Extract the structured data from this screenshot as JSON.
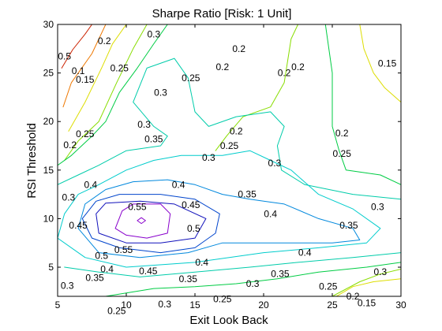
{
  "chart_data": {
    "type": "contour",
    "title": "Sharpe Ratio [Risk: 1 Unit]",
    "xlabel": "Exit Look Back",
    "ylabel": "RSI Threshold",
    "xlim": [
      5,
      30
    ],
    "ylim": [
      2,
      30
    ],
    "xticks": [
      5,
      10,
      15,
      20,
      25,
      30
    ],
    "yticks": [
      5,
      10,
      15,
      20,
      25,
      30
    ],
    "grid": false,
    "levels": [
      {
        "level": 0.05,
        "color": "#cc2200"
      },
      {
        "level": 0.1,
        "color": "#ee7700"
      },
      {
        "level": 0.15,
        "color": "#dddd00"
      },
      {
        "level": 0.2,
        "color": "#88dd00"
      },
      {
        "level": 0.25,
        "color": "#00cc44"
      },
      {
        "level": 0.3,
        "color": "#00ccaa"
      },
      {
        "level": 0.35,
        "color": "#00cccc"
      },
      {
        "level": 0.4,
        "color": "#0088dd"
      },
      {
        "level": 0.45,
        "color": "#0044cc"
      },
      {
        "level": 0.5,
        "color": "#1111bb"
      },
      {
        "level": 0.55,
        "color": "#8800cc"
      }
    ],
    "contours": [
      {
        "level": 0.05,
        "points": [
          [
            5.3,
            25.5
          ],
          [
            6.1,
            27.4
          ],
          [
            7.0,
            29.0
          ],
          [
            7.5,
            30.0
          ]
        ]
      },
      {
        "level": 0.1,
        "points": [
          [
            5.4,
            21.5
          ],
          [
            6.0,
            24.0
          ],
          [
            7.5,
            27.0
          ],
          [
            8.5,
            30.0
          ]
        ]
      },
      {
        "level": 0.15,
        "points": [
          [
            5.8,
            19.0
          ],
          [
            7.0,
            22.0
          ],
          [
            8.2,
            25.5
          ],
          [
            9.0,
            28.0
          ],
          [
            10.0,
            30.0
          ]
        ]
      },
      {
        "level": 0.15,
        "points": [
          [
            30.0,
            22.0
          ],
          [
            28.8,
            23.5
          ],
          [
            28.0,
            25.0
          ],
          [
            27.3,
            27.5
          ],
          [
            27.0,
            30.0
          ]
        ]
      },
      {
        "level": 0.15,
        "points": [
          [
            25.3,
            2.0
          ],
          [
            26.5,
            3.0
          ],
          [
            28.0,
            3.5
          ],
          [
            30.0,
            3.8
          ]
        ]
      },
      {
        "level": 0.2,
        "points": [
          [
            5.5,
            16.0
          ],
          [
            6.5,
            18.0
          ],
          [
            8.0,
            20.0
          ],
          [
            9.3,
            24.0
          ],
          [
            10.5,
            27.5
          ],
          [
            11.5,
            30.0
          ]
        ]
      },
      {
        "level": 0.2,
        "points": [
          [
            22.5,
            30.0
          ],
          [
            22.0,
            28.5
          ],
          [
            21.5,
            24.0
          ],
          [
            20.5,
            21.5
          ],
          [
            18.5,
            20.5
          ],
          [
            17.3,
            18.5
          ],
          [
            16.5,
            17.0
          ]
        ]
      },
      {
        "level": 0.2,
        "points": [
          [
            25.0,
            2.0
          ],
          [
            27.0,
            3.5
          ],
          [
            28.5,
            4.3
          ],
          [
            30.0,
            4.8
          ]
        ]
      },
      {
        "level": 0.25,
        "points": [
          [
            5.0,
            15.5
          ],
          [
            6.0,
            16.5
          ],
          [
            7.5,
            18.5
          ],
          [
            8.5,
            20.0
          ],
          [
            9.5,
            23.0
          ],
          [
            10.8,
            25.5
          ],
          [
            12.0,
            28.0
          ],
          [
            13.0,
            30.0
          ]
        ]
      },
      {
        "level": 0.25,
        "points": [
          [
            30.0,
            13.5
          ],
          [
            28.5,
            14.5
          ],
          [
            26.0,
            15.0
          ],
          [
            25.5,
            17.0
          ],
          [
            25.0,
            19.5
          ],
          [
            25.0,
            25.0
          ],
          [
            24.5,
            30.0
          ]
        ]
      },
      {
        "level": 0.25,
        "points": [
          [
            8.5,
            2.0
          ],
          [
            12.0,
            2.8
          ],
          [
            15.0,
            3.0
          ],
          [
            18.0,
            3.3
          ],
          [
            21.0,
            3.8
          ],
          [
            24.0,
            4.5
          ],
          [
            27.5,
            5.0
          ],
          [
            30.0,
            5.5
          ]
        ]
      },
      {
        "level": 0.3,
        "points": [
          [
            5.0,
            13.5
          ],
          [
            6.5,
            14.5
          ],
          [
            8.0,
            15.5
          ],
          [
            10.0,
            17.0
          ],
          [
            12.5,
            17.5
          ],
          [
            13.0,
            18.5
          ],
          [
            12.0,
            19.5
          ],
          [
            10.5,
            22.0
          ],
          [
            11.5,
            25.5
          ],
          [
            13.5,
            26.5
          ],
          [
            14.5,
            24.5
          ],
          [
            15.0,
            21.0
          ],
          [
            16.0,
            19.5
          ],
          [
            18.0,
            20.5
          ],
          [
            20.5,
            21.0
          ],
          [
            21.5,
            19.5
          ],
          [
            21.0,
            17.5
          ],
          [
            21.3,
            15.0
          ],
          [
            23.0,
            13.5
          ],
          [
            26.5,
            12.5
          ],
          [
            30.0,
            12.0
          ]
        ]
      },
      {
        "level": 0.3,
        "points": [
          [
            5.5,
            5.0
          ],
          [
            8.0,
            4.5
          ],
          [
            11.0,
            4.0
          ],
          [
            15.0,
            4.5
          ],
          [
            19.0,
            5.0
          ],
          [
            22.5,
            5.5
          ],
          [
            26.5,
            6.0
          ],
          [
            30.0,
            6.5
          ]
        ]
      },
      {
        "level": 0.35,
        "points": [
          [
            5.0,
            8.0
          ],
          [
            5.5,
            10.5
          ],
          [
            6.5,
            12.5
          ],
          [
            8.0,
            13.5
          ],
          [
            10.0,
            15.0
          ],
          [
            12.0,
            16.0
          ],
          [
            14.0,
            16.5
          ],
          [
            17.0,
            16.5
          ],
          [
            19.0,
            17.0
          ],
          [
            20.5,
            16.0
          ],
          [
            22.0,
            15.0
          ],
          [
            24.0,
            12.5
          ],
          [
            26.5,
            11.0
          ],
          [
            28.5,
            9.0
          ],
          [
            27.5,
            7.5
          ],
          [
            24.0,
            7.0
          ],
          [
            20.0,
            6.5
          ],
          [
            15.0,
            5.5
          ],
          [
            10.0,
            5.0
          ],
          [
            7.0,
            6.0
          ],
          [
            5.0,
            8.0
          ]
        ]
      },
      {
        "level": 0.4,
        "points": [
          [
            6.5,
            9.0
          ],
          [
            7.0,
            11.5
          ],
          [
            8.5,
            13.0
          ],
          [
            10.5,
            13.8
          ],
          [
            13.0,
            14.0
          ],
          [
            15.0,
            13.5
          ],
          [
            17.0,
            12.5
          ],
          [
            19.0,
            12.0
          ],
          [
            21.5,
            11.5
          ],
          [
            24.0,
            10.0
          ],
          [
            26.5,
            9.0
          ],
          [
            27.0,
            7.8
          ],
          [
            25.0,
            7.5
          ],
          [
            21.0,
            7.5
          ],
          [
            17.0,
            7.5
          ],
          [
            14.5,
            6.5
          ],
          [
            11.0,
            6.0
          ],
          [
            8.0,
            6.5
          ],
          [
            6.5,
            9.0
          ]
        ]
      },
      {
        "level": 0.45,
        "points": [
          [
            6.8,
            10.0
          ],
          [
            7.8,
            11.8
          ],
          [
            9.5,
            12.5
          ],
          [
            12.5,
            12.5
          ],
          [
            15.0,
            12.0
          ],
          [
            16.8,
            10.5
          ],
          [
            16.5,
            8.5
          ],
          [
            15.0,
            7.0
          ],
          [
            12.5,
            6.5
          ],
          [
            9.5,
            7.0
          ],
          [
            7.5,
            8.0
          ],
          [
            6.8,
            10.0
          ]
        ]
      },
      {
        "level": 0.5,
        "points": [
          [
            7.8,
            10.5
          ],
          [
            8.5,
            11.6
          ],
          [
            11.0,
            11.8
          ],
          [
            13.5,
            11.5
          ],
          [
            15.8,
            10.0
          ],
          [
            15.0,
            8.0
          ],
          [
            12.5,
            7.5
          ],
          [
            10.0,
            7.5
          ],
          [
            8.0,
            8.5
          ],
          [
            7.8,
            10.5
          ]
        ]
      },
      {
        "level": 0.55,
        "points": [
          [
            9.2,
            9.0
          ],
          [
            9.7,
            10.8
          ],
          [
            10.5,
            11.5
          ],
          [
            12.5,
            11.5
          ],
          [
            13.2,
            10.5
          ],
          [
            13.0,
            8.5
          ],
          [
            11.5,
            8.0
          ],
          [
            10.0,
            8.3
          ],
          [
            9.2,
            9.0
          ]
        ]
      },
      {
        "level": 0.55,
        "points": [
          [
            10.8,
            9.8
          ],
          [
            11.1,
            10.1
          ],
          [
            11.4,
            9.8
          ],
          [
            11.1,
            9.5
          ],
          [
            10.8,
            9.8
          ]
        ]
      }
    ],
    "labels": [
      {
        "text": "0.5",
        "x": 5.5,
        "y": 26.7
      },
      {
        "text": "0.1",
        "x": 6.5,
        "y": 25.2
      },
      {
        "text": "0.2",
        "x": 8.4,
        "y": 28.3
      },
      {
        "text": "0.15",
        "x": 7.0,
        "y": 24.3
      },
      {
        "text": "0.25",
        "x": 9.5,
        "y": 25.5
      },
      {
        "text": "0.3",
        "x": 12.0,
        "y": 29.0
      },
      {
        "text": "0.3",
        "x": 12.5,
        "y": 23.0
      },
      {
        "text": "0.25",
        "x": 14.7,
        "y": 24.5
      },
      {
        "text": "0.2",
        "x": 17.0,
        "y": 25.6
      },
      {
        "text": "0.2",
        "x": 18.2,
        "y": 27.5
      },
      {
        "text": "0.2",
        "x": 21.5,
        "y": 25.0
      },
      {
        "text": "0.2",
        "x": 22.5,
        "y": 25.6
      },
      {
        "text": "0.15",
        "x": 29.0,
        "y": 26.0
      },
      {
        "text": "0.3",
        "x": 11.3,
        "y": 19.7
      },
      {
        "text": "0.35",
        "x": 12.0,
        "y": 18.2
      },
      {
        "text": "0.25",
        "x": 7.0,
        "y": 18.7
      },
      {
        "text": "0.2",
        "x": 5.9,
        "y": 17.6
      },
      {
        "text": "0.2",
        "x": 18.0,
        "y": 19.0
      },
      {
        "text": "0.25",
        "x": 17.5,
        "y": 17.5
      },
      {
        "text": "0.3",
        "x": 16.0,
        "y": 16.3
      },
      {
        "text": "0.3",
        "x": 20.8,
        "y": 15.7
      },
      {
        "text": "0.2",
        "x": 25.7,
        "y": 18.8
      },
      {
        "text": "0.25",
        "x": 25.7,
        "y": 16.7
      },
      {
        "text": "0.4",
        "x": 7.4,
        "y": 13.5
      },
      {
        "text": "0.3",
        "x": 5.8,
        "y": 12.2
      },
      {
        "text": "0.4",
        "x": 13.8,
        "y": 13.5
      },
      {
        "text": "0.35",
        "x": 18.8,
        "y": 12.5
      },
      {
        "text": "0.55",
        "x": 10.8,
        "y": 11.2
      },
      {
        "text": "0.45",
        "x": 14.7,
        "y": 11.4
      },
      {
        "text": "0.4",
        "x": 20.5,
        "y": 10.5
      },
      {
        "text": "0.3",
        "x": 28.3,
        "y": 11.2
      },
      {
        "text": "0.35",
        "x": 26.2,
        "y": 9.3
      },
      {
        "text": "0.45",
        "x": 6.5,
        "y": 9.3
      },
      {
        "text": "0.5",
        "x": 14.9,
        "y": 9.0
      },
      {
        "text": "0.55",
        "x": 9.8,
        "y": 6.8
      },
      {
        "text": "0.5",
        "x": 8.2,
        "y": 6.2
      },
      {
        "text": "0.4",
        "x": 8.6,
        "y": 4.8
      },
      {
        "text": "0.4",
        "x": 15.5,
        "y": 5.5
      },
      {
        "text": "0.4",
        "x": 23.0,
        "y": 6.5
      },
      {
        "text": "0.45",
        "x": 11.6,
        "y": 4.6
      },
      {
        "text": "0.35",
        "x": 7.7,
        "y": 3.9
      },
      {
        "text": "0.35",
        "x": 14.5,
        "y": 3.8
      },
      {
        "text": "0.35",
        "x": 21.2,
        "y": 4.3
      },
      {
        "text": "0.3",
        "x": 5.7,
        "y": 3.1
      },
      {
        "text": "0.3",
        "x": 19.2,
        "y": 3.3
      },
      {
        "text": "0.3",
        "x": 28.5,
        "y": 4.5
      },
      {
        "text": "0.25",
        "x": 24.7,
        "y": 3.0
      },
      {
        "text": "0.25",
        "x": 17.0,
        "y": 1.7
      },
      {
        "text": "0.3",
        "x": 12.8,
        "y": 1.2
      },
      {
        "text": "0.25",
        "x": 9.3,
        "y": 0.5
      },
      {
        "text": "0.2",
        "x": 26.5,
        "y": 2.0
      },
      {
        "text": "0.15",
        "x": 27.5,
        "y": 1.3
      }
    ]
  }
}
